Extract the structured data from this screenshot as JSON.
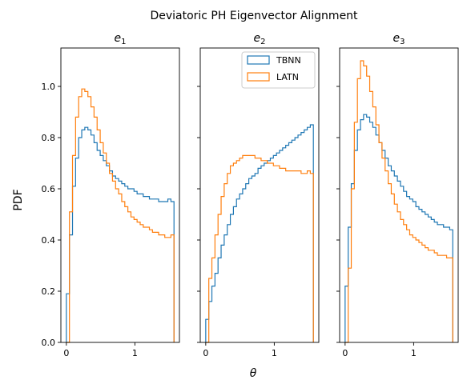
{
  "figure": {
    "suptitle": "Deviatoric PH Eigenvector Alignment",
    "ylabel": "PDF",
    "xlabel": "θ"
  },
  "legend": {
    "placement": "upper-right of middle panel",
    "entries": [
      "TBNN",
      "LATN"
    ]
  },
  "colors": {
    "TBNN": "#1f77b4",
    "LATN": "#ff7f0e"
  },
  "chart_data": [
    {
      "type": "histogram-step",
      "title": "e1",
      "title_base": "e",
      "title_sub": "1",
      "xlim": [
        -0.08,
        1.65
      ],
      "ylim": [
        0,
        1.15
      ],
      "xticks": [
        0,
        1
      ],
      "yticks": [
        0.0,
        0.2,
        0.4,
        0.6,
        0.8,
        1.0
      ],
      "bin_edges": [
        0,
        1.5708
      ],
      "series": [
        {
          "name": "TBNN",
          "values": [
            0.19,
            0.42,
            0.61,
            0.72,
            0.8,
            0.83,
            0.84,
            0.83,
            0.81,
            0.78,
            0.75,
            0.73,
            0.71,
            0.69,
            0.67,
            0.65,
            0.64,
            0.63,
            0.62,
            0.61,
            0.6,
            0.6,
            0.59,
            0.58,
            0.58,
            0.57,
            0.57,
            0.56,
            0.56,
            0.56,
            0.55,
            0.55,
            0.55,
            0.56,
            0.55
          ]
        },
        {
          "name": "LATN",
          "values": [
            0.0,
            0.51,
            0.73,
            0.88,
            0.96,
            0.99,
            0.98,
            0.96,
            0.92,
            0.88,
            0.83,
            0.78,
            0.74,
            0.7,
            0.66,
            0.63,
            0.6,
            0.58,
            0.55,
            0.53,
            0.51,
            0.49,
            0.48,
            0.47,
            0.46,
            0.45,
            0.45,
            0.44,
            0.43,
            0.43,
            0.42,
            0.42,
            0.41,
            0.41,
            0.42
          ]
        }
      ]
    },
    {
      "type": "histogram-step",
      "title": "e2",
      "title_base": "e",
      "title_sub": "2",
      "xlim": [
        -0.08,
        1.65
      ],
      "ylim": [
        0,
        1.15
      ],
      "xticks": [
        0,
        1
      ],
      "yticks": [
        0.0,
        0.2,
        0.4,
        0.6,
        0.8,
        1.0
      ],
      "bin_edges": [
        0,
        1.5708
      ],
      "series": [
        {
          "name": "TBNN",
          "values": [
            0.09,
            0.16,
            0.22,
            0.27,
            0.33,
            0.38,
            0.42,
            0.46,
            0.5,
            0.53,
            0.56,
            0.58,
            0.6,
            0.62,
            0.64,
            0.65,
            0.66,
            0.68,
            0.69,
            0.7,
            0.71,
            0.72,
            0.73,
            0.74,
            0.75,
            0.76,
            0.77,
            0.78,
            0.79,
            0.8,
            0.81,
            0.82,
            0.83,
            0.84,
            0.85
          ]
        },
        {
          "name": "LATN",
          "values": [
            0.0,
            0.25,
            0.33,
            0.42,
            0.5,
            0.57,
            0.62,
            0.66,
            0.69,
            0.7,
            0.71,
            0.72,
            0.73,
            0.73,
            0.73,
            0.73,
            0.72,
            0.72,
            0.71,
            0.71,
            0.7,
            0.7,
            0.69,
            0.69,
            0.68,
            0.68,
            0.67,
            0.67,
            0.67,
            0.67,
            0.67,
            0.66,
            0.66,
            0.67,
            0.66
          ]
        }
      ]
    },
    {
      "type": "histogram-step",
      "title": "e3",
      "title_base": "e",
      "title_sub": "3",
      "xlim": [
        -0.08,
        1.65
      ],
      "ylim": [
        0,
        1.15
      ],
      "xticks": [
        0,
        1
      ],
      "yticks": [
        0.0,
        0.2,
        0.4,
        0.6,
        0.8,
        1.0
      ],
      "bin_edges": [
        0,
        1.5708
      ],
      "series": [
        {
          "name": "TBNN",
          "values": [
            0.22,
            0.45,
            0.62,
            0.75,
            0.83,
            0.87,
            0.89,
            0.88,
            0.86,
            0.84,
            0.81,
            0.78,
            0.75,
            0.72,
            0.69,
            0.67,
            0.65,
            0.63,
            0.61,
            0.59,
            0.57,
            0.56,
            0.55,
            0.53,
            0.52,
            0.51,
            0.5,
            0.49,
            0.48,
            0.47,
            0.46,
            0.46,
            0.45,
            0.45,
            0.44
          ]
        },
        {
          "name": "LATN",
          "values": [
            0.0,
            0.29,
            0.6,
            0.86,
            1.03,
            1.1,
            1.08,
            1.04,
            0.98,
            0.92,
            0.85,
            0.78,
            0.72,
            0.67,
            0.62,
            0.58,
            0.54,
            0.51,
            0.48,
            0.46,
            0.44,
            0.42,
            0.41,
            0.4,
            0.39,
            0.38,
            0.37,
            0.36,
            0.36,
            0.35,
            0.34,
            0.34,
            0.34,
            0.33,
            0.33
          ]
        }
      ]
    }
  ]
}
